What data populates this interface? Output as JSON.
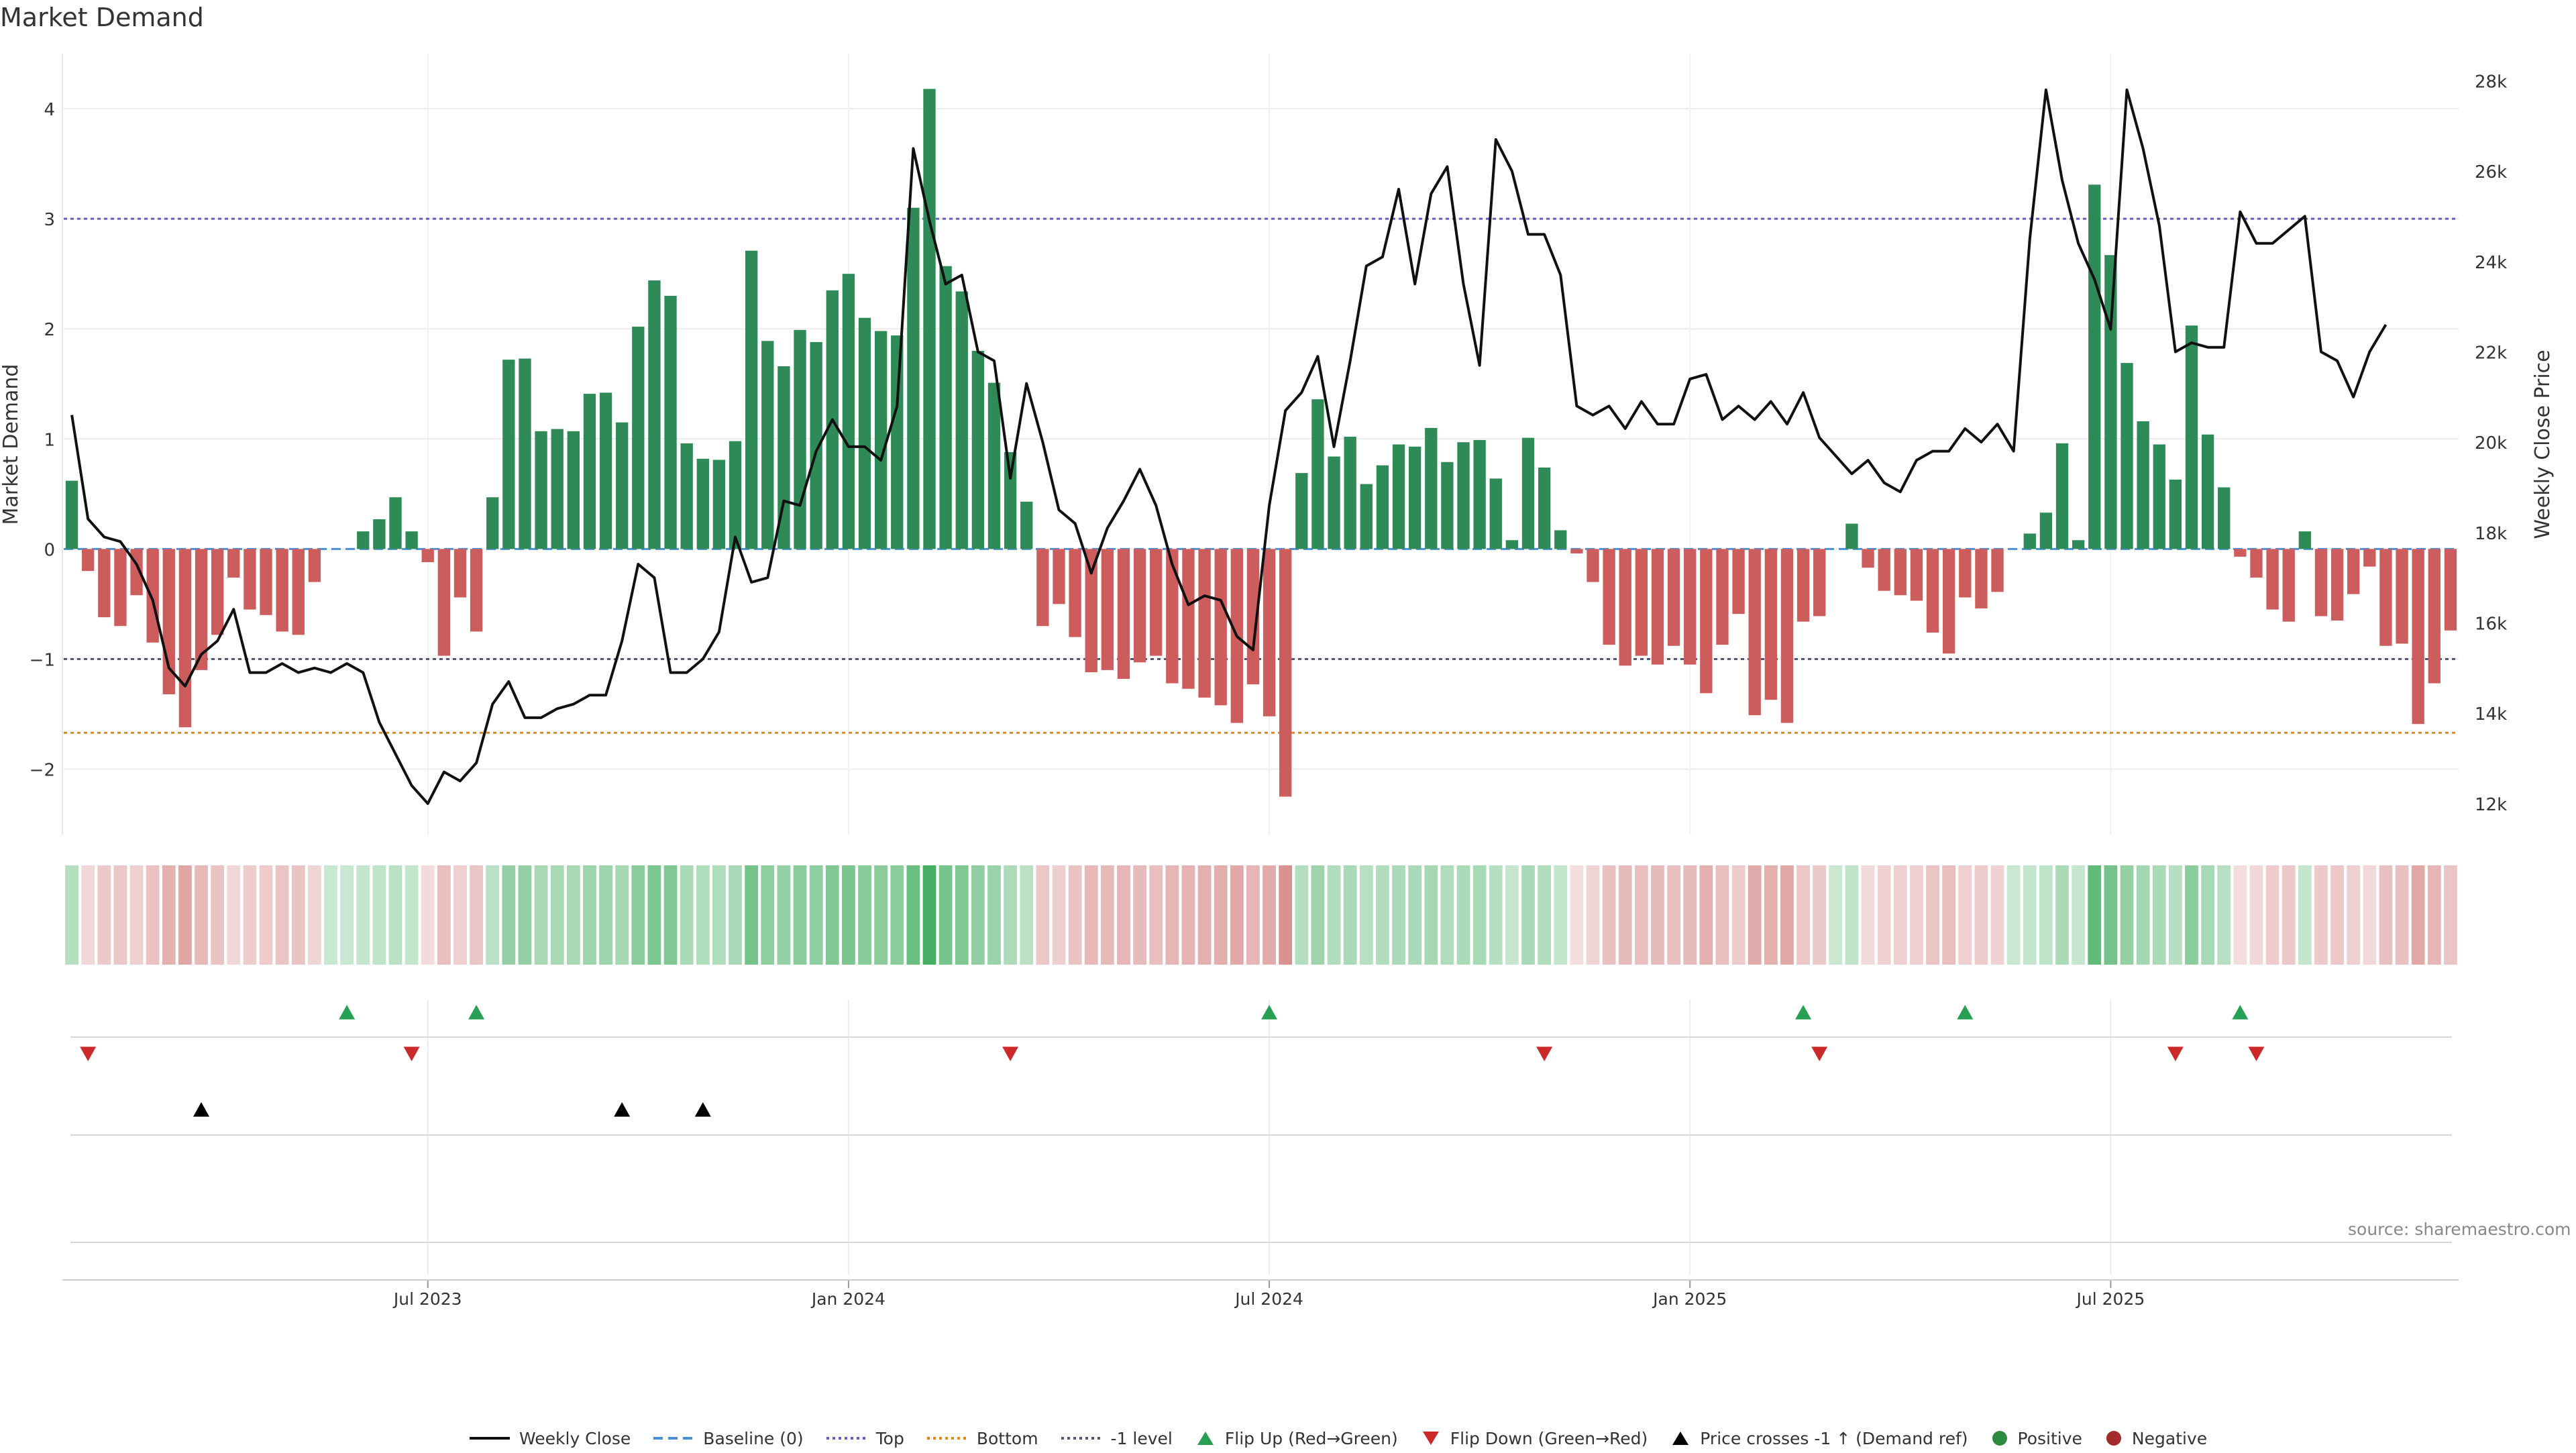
{
  "chart_data": {
    "type": "bar",
    "title": "Market Demand",
    "ylabel": "Market Demand",
    "y2label": "Weekly Close Price",
    "ylim": [
      -2.6,
      4.5
    ],
    "y2lim": [
      11300,
      28600
    ],
    "yticks": [
      -2,
      -1,
      0,
      1,
      2,
      3,
      4
    ],
    "y2ticks": [
      12000,
      14000,
      16000,
      18000,
      20000,
      22000,
      24000,
      26000,
      28000
    ],
    "ytick_labels": [
      "−2",
      "−1",
      "0",
      "1",
      "2",
      "3",
      "4"
    ],
    "y2tick_labels": [
      "12k",
      "14k",
      "16k",
      "18k",
      "20k",
      "22k",
      "24k",
      "26k",
      "28k"
    ],
    "xticks": [
      {
        "index": 22,
        "label": "Jul 2023"
      },
      {
        "index": 48,
        "label": "Jan 2024"
      },
      {
        "index": 74,
        "label": "Jul 2024"
      },
      {
        "index": 100,
        "label": "Jan 2025"
      },
      {
        "index": 126,
        "label": "Jul 2025"
      }
    ],
    "reference_lines": {
      "top": 3.0,
      "bottom": -1.67,
      "minus_one": -1.0,
      "baseline": 0
    },
    "demand": [
      0.62,
      -0.2,
      -0.62,
      -0.7,
      -0.42,
      -0.85,
      -1.32,
      -1.62,
      -1.1,
      -0.78,
      -0.26,
      -0.55,
      -0.6,
      -0.75,
      -0.78,
      -0.3,
      0,
      0,
      0.16,
      0.27,
      0.47,
      0.16,
      -0.12,
      -0.97,
      -0.44,
      -0.75,
      0.47,
      1.72,
      1.73,
      1.07,
      1.09,
      1.07,
      1.41,
      1.42,
      1.15,
      2.02,
      2.44,
      2.3,
      0.96,
      0.82,
      0.81,
      0.98,
      2.71,
      1.89,
      1.66,
      1.99,
      1.88,
      2.35,
      2.5,
      2.1,
      1.98,
      1.94,
      3.1,
      4.18,
      2.57,
      2.34,
      1.8,
      1.51,
      0.88,
      0.43,
      -0.7,
      -0.5,
      -0.8,
      -1.12,
      -1.1,
      -1.18,
      -1.03,
      -0.97,
      -1.22,
      -1.27,
      -1.35,
      -1.42,
      -1.58,
      -1.23,
      -1.52,
      -2.25,
      0.69,
      1.36,
      0.84,
      1.02,
      0.59,
      0.76,
      0.95,
      0.93,
      1.1,
      0.79,
      0.97,
      0.99,
      0.64,
      0.08,
      1.01,
      0.74,
      0.17,
      -0.04,
      -0.3,
      -0.87,
      -1.06,
      -0.97,
      -1.05,
      -0.88,
      -1.05,
      -1.31,
      -0.87,
      -0.59,
      -1.51,
      -1.37,
      -1.58,
      -0.66,
      -0.61,
      0,
      0.23,
      -0.17,
      -0.38,
      -0.42,
      -0.47,
      -0.76,
      -0.95,
      -0.44,
      -0.54,
      -0.39,
      0,
      0.14,
      0.33,
      0.96,
      0.08,
      3.31,
      2.67,
      1.69,
      1.16,
      0.95,
      0.63,
      2.03,
      1.04,
      0.56,
      -0.07,
      -0.26,
      -0.55,
      -0.66,
      0.16,
      -0.61,
      -0.65,
      -0.41,
      -0.16,
      -0.88,
      -0.86,
      -1.59,
      -1.22,
      -0.74
    ],
    "price": [
      20600,
      18300,
      17900,
      17800,
      17300,
      16500,
      15000,
      14600,
      15300,
      15600,
      16300,
      14900,
      14900,
      15100,
      14900,
      15000,
      14900,
      15100,
      14900,
      13800,
      13100,
      12400,
      12000,
      12700,
      12500,
      12900,
      14200,
      14700,
      13900,
      13900,
      14100,
      14200,
      14400,
      14400,
      15600,
      17300,
      17000,
      14900,
      14900,
      15200,
      15800,
      17900,
      16900,
      17000,
      18700,
      18600,
      19800,
      20500,
      19900,
      19900,
      19600,
      20800,
      26500,
      24900,
      23500,
      23700,
      22000,
      21800,
      19200,
      21300,
      20000,
      18500,
      18200,
      17100,
      18100,
      18700,
      19400,
      18600,
      17300,
      16400,
      16600,
      16500,
      15700,
      15400,
      18600,
      20700,
      21100,
      21900,
      19900,
      21800,
      23900,
      24100,
      25600,
      23500,
      25500,
      26100,
      23500,
      21700,
      26700,
      26000,
      24600,
      24600,
      23700,
      20800,
      20600,
      20800,
      20300,
      20900,
      20400,
      20400,
      21400,
      21500,
      20500,
      20800,
      20500,
      20900,
      20400,
      21100,
      20100,
      19700,
      19300,
      19600,
      19100,
      18900,
      19600,
      19800,
      19800,
      20300,
      20000,
      20400,
      19800,
      24500,
      27800,
      25800,
      24400,
      23600,
      22500,
      27800,
      26500,
      24800,
      22000,
      22200,
      22100,
      22100,
      25100,
      24400,
      24400,
      24700,
      25000,
      22000,
      21800,
      21000,
      22000,
      22600
    ],
    "flip_up": [
      17,
      25,
      74,
      107,
      117,
      134
    ],
    "flip_down": [
      1,
      21,
      58,
      91,
      108,
      130,
      135
    ],
    "price_cross_up": [
      8,
      34,
      39
    ],
    "legend": [
      {
        "label": "Weekly Close",
        "kind": "solid-line",
        "color": "#111111"
      },
      {
        "label": "Baseline (0)",
        "kind": "dashed-line",
        "color": "#4a90d9"
      },
      {
        "label": "Top",
        "kind": "dotted-line",
        "color": "#6a5acd"
      },
      {
        "label": "Bottom",
        "kind": "dotted-line",
        "color": "#e08a1e"
      },
      {
        "label": "-1 level",
        "kind": "dotted-line",
        "color": "#555577"
      },
      {
        "label": "Flip Up (Red→Green)",
        "kind": "triangle-up",
        "color": "#27a055"
      },
      {
        "label": "Flip Down (Green→Red)",
        "kind": "triangle-down",
        "color": "#cc2a2a"
      },
      {
        "label": "Price crosses -1 ↑ (Demand ref)",
        "kind": "triangle-up",
        "color": "#000000"
      },
      {
        "label": "Positive",
        "kind": "dot",
        "color": "#2e8b3e"
      },
      {
        "label": "Negative",
        "kind": "dot",
        "color": "#a52a2a"
      }
    ],
    "colors": {
      "positive_bar": "#2e8b57",
      "negative_bar": "#cd5c5c",
      "price_line": "#111111"
    }
  },
  "source": "source: sharemaestro.com"
}
